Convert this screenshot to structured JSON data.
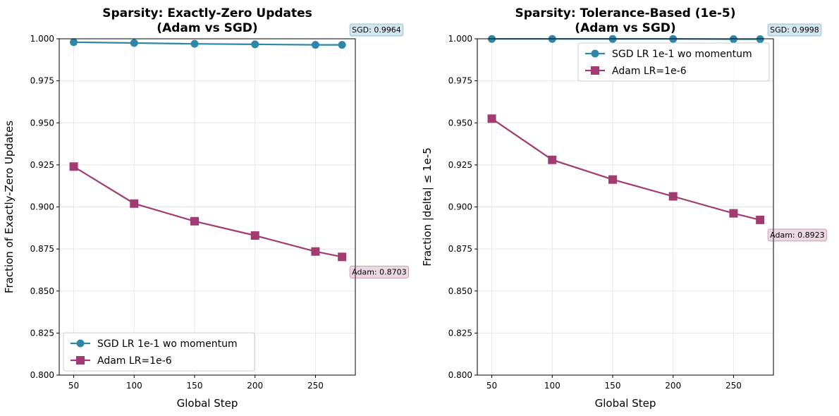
{
  "chart_data": [
    {
      "type": "line",
      "title": "Sparsity: Exactly-Zero Updates\n(Adam vs SGD)",
      "xlabel": "Global Step",
      "ylabel": "Fraction of Exactly-Zero Updates",
      "xlim": [
        38,
        283
      ],
      "ylim": [
        0.8,
        1.0
      ],
      "xticks": [
        50,
        100,
        150,
        200,
        250
      ],
      "yticks": [
        0.8,
        0.825,
        0.85,
        0.875,
        0.9,
        0.925,
        0.95,
        0.975,
        1.0
      ],
      "ytick_labels": [
        "0.800",
        "0.825",
        "0.850",
        "0.875",
        "0.900",
        "0.925",
        "0.950",
        "0.975",
        "1.000"
      ],
      "grid": true,
      "legend_loc": "lower-left",
      "series": [
        {
          "name": "SGD LR 1e-1 wo momentum",
          "color": "#2e86ab",
          "marker": "circle",
          "x": [
            50,
            100,
            150,
            200,
            250,
            272
          ],
          "y": [
            0.998,
            0.9975,
            0.997,
            0.9967,
            0.9964,
            0.9964
          ]
        },
        {
          "name": "Adam LR=1e-6",
          "color": "#a23b72",
          "marker": "square",
          "x": [
            50,
            100,
            150,
            200,
            250,
            272
          ],
          "y": [
            0.924,
            0.902,
            0.8915,
            0.883,
            0.8735,
            0.8703
          ]
        }
      ],
      "annotations": [
        {
          "text": "SGD: 0.9964",
          "color": "#2e86ab",
          "x": 272,
          "y": 0.9964,
          "side": "above"
        },
        {
          "text": "Adam: 0.8703",
          "color": "#a23b72",
          "x": 272,
          "y": 0.8703,
          "side": "below"
        }
      ]
    },
    {
      "type": "line",
      "title": "Sparsity: Tolerance-Based (1e-5)\n(Adam vs SGD)",
      "xlabel": "Global Step",
      "ylabel": "Fraction |delta| ≤ 1e-5",
      "xlim": [
        38,
        283
      ],
      "ylim": [
        0.8,
        1.0
      ],
      "xticks": [
        50,
        100,
        150,
        200,
        250
      ],
      "yticks": [
        0.8,
        0.825,
        0.85,
        0.875,
        0.9,
        0.925,
        0.95,
        0.975,
        1.0
      ],
      "ytick_labels": [
        "0.800",
        "0.825",
        "0.850",
        "0.875",
        "0.900",
        "0.925",
        "0.950",
        "0.975",
        "1.000"
      ],
      "grid": true,
      "legend_loc": "upper-right",
      "series": [
        {
          "name": "SGD LR 1e-1 wo momentum",
          "color": "#2e86ab",
          "marker": "circle",
          "x": [
            50,
            100,
            150,
            200,
            250,
            272
          ],
          "y": [
            0.9999,
            0.9999,
            0.9999,
            0.9999,
            0.9998,
            0.9998
          ]
        },
        {
          "name": "Adam LR=1e-6",
          "color": "#a23b72",
          "marker": "square",
          "x": [
            50,
            100,
            150,
            200,
            250,
            272
          ],
          "y": [
            0.9525,
            0.928,
            0.9163,
            0.9063,
            0.8962,
            0.8923
          ]
        }
      ],
      "annotations": [
        {
          "text": "SGD: 0.9998",
          "color": "#2e86ab",
          "x": 272,
          "y": 0.9998,
          "side": "above"
        },
        {
          "text": "Adam: 0.8923",
          "color": "#a23b72",
          "x": 272,
          "y": 0.8923,
          "side": "below"
        }
      ]
    }
  ]
}
